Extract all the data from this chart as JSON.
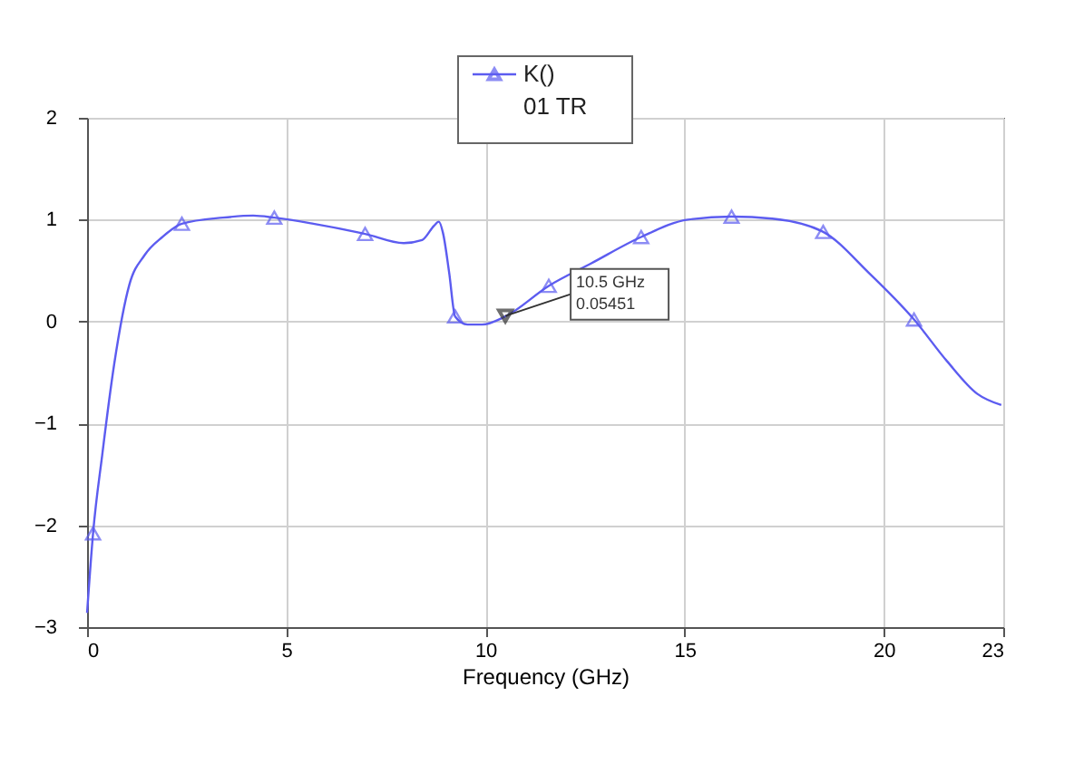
{
  "chart_data": {
    "type": "line",
    "xlabel": "Frequency (GHz)",
    "legend_title": "01 TR",
    "xlim": [
      0,
      23
    ],
    "xticks": [
      0,
      5,
      10,
      15,
      20,
      23
    ],
    "ylim": [
      -3,
      2
    ],
    "yticks": [
      -3,
      -2,
      -1,
      0,
      1,
      2
    ],
    "grid": true,
    "legend": "top",
    "series": [
      {
        "name": "K()",
        "color": "#5c5cf0",
        "marker": "none",
        "x": [
          0,
          0.15,
          0.38,
          0.68,
          1.06,
          1.44,
          1.89,
          2.38,
          3.41,
          4.17,
          4.7,
          5.68,
          6.98,
          7.95,
          8.41,
          8.71,
          8.83,
          8.94,
          9.09,
          9.24,
          9.55,
          9.92,
          10.5,
          11.59,
          12.65,
          13.91,
          15.08,
          16.18,
          17.2,
          18.48,
          19.62,
          20.76,
          21.59,
          22.35,
          22.95
        ],
        "values": [
          -2.86,
          -2.08,
          -1.31,
          -0.42,
          0.36,
          0.65,
          0.83,
          0.96,
          1.02,
          1.04,
          1.02,
          0.96,
          0.86,
          0.77,
          0.8,
          0.94,
          0.98,
          0.86,
          0.48,
          0.05,
          -0.03,
          -0.03,
          0.05,
          0.35,
          0.57,
          0.83,
          1.0,
          1.03,
          1.01,
          0.88,
          0.48,
          0.02,
          -0.39,
          -0.71,
          -0.82
        ]
      },
      {
        "color": "#5c5cf0",
        "type": "scatter",
        "marker": "triangle",
        "x": [
          0.15,
          2.38,
          4.7,
          6.98,
          9.24,
          11.59,
          13.91,
          16.18,
          18.48,
          20.76
        ],
        "values": [
          -2.08,
          0.96,
          1.02,
          0.86,
          0.05,
          0.35,
          0.83,
          1.03,
          0.88,
          0.02
        ]
      }
    ],
    "annotations": [
      {
        "text": "10.5 GHz\n0.05451",
        "x": 10.5,
        "y": 0.05451
      }
    ]
  }
}
